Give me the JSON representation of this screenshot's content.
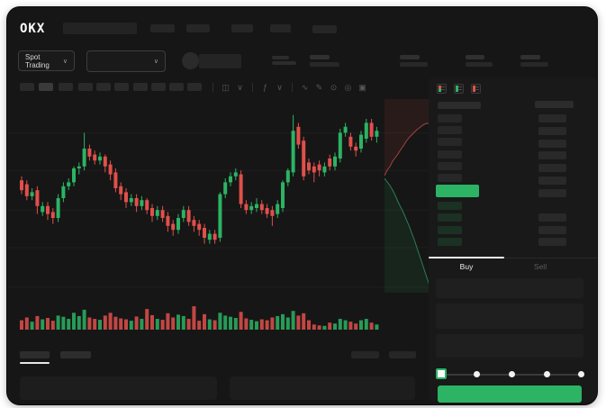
{
  "window_title": "OKX Spot Trading (redacted mock)",
  "colors": {
    "green": "#2cb364",
    "red": "#e0504b",
    "window_bg": "#161616",
    "panel_bg": "#191919",
    "bar_gray": "#272727",
    "bar_light": "#3a3a3a",
    "white": "#f2f2f2",
    "depth_ask_line": "#a1453f",
    "depth_bid_line": "#2f7d57",
    "depth_ask_fill": "rgba(224,80,75,0.10)",
    "depth_bid_fill": "rgba(44,179,100,0.10)"
  },
  "topbar": {
    "logo": "OKX"
  },
  "symbol_bar": {
    "market_label": "Spot Trading",
    "chevron": "∨"
  },
  "chart_toolbar": {
    "icons": [
      {
        "type": "divider"
      },
      {
        "type": "icon",
        "name": "chart-type-icon",
        "glyph": "◫"
      },
      {
        "type": "icon",
        "name": "chart-type-chevron-icon",
        "glyph": "∨"
      },
      {
        "type": "divider"
      },
      {
        "type": "icon",
        "name": "indicators-icon",
        "glyph": "ƒ"
      },
      {
        "type": "icon",
        "name": "indicators-chevron-icon",
        "glyph": "∨"
      },
      {
        "type": "divider"
      },
      {
        "type": "icon",
        "name": "line-tool-icon",
        "glyph": "∿"
      },
      {
        "type": "icon",
        "name": "draw-tool-icon",
        "glyph": "✎"
      },
      {
        "type": "icon",
        "name": "camera-icon",
        "glyph": "⊙"
      },
      {
        "type": "icon",
        "name": "settings-icon",
        "glyph": "◎"
      },
      {
        "type": "icon",
        "name": "fullscreen-icon",
        "glyph": "▣"
      }
    ]
  },
  "chart_data": {
    "type": "candlestick",
    "note": "No numeric axis labels are visible in the screenshot (redacted UI); values are normalized 0-100.",
    "ylim": [
      0,
      100
    ],
    "gridlines_y": [
      83,
      64,
      44,
      25,
      5
    ],
    "ohlc": [
      [
        59,
        61,
        52,
        54
      ],
      [
        57,
        59,
        49,
        51
      ],
      [
        51,
        55,
        49,
        53
      ],
      [
        54,
        56,
        42,
        46
      ],
      [
        43,
        48,
        41,
        46
      ],
      [
        46,
        48,
        39,
        42
      ],
      [
        43,
        45,
        37,
        40
      ],
      [
        40,
        52,
        38,
        50
      ],
      [
        50,
        58,
        48,
        56
      ],
      [
        56,
        60,
        54,
        58
      ],
      [
        58,
        66,
        56,
        65
      ],
      [
        65,
        68,
        62,
        66
      ],
      [
        66,
        83,
        64,
        75
      ],
      [
        75,
        77,
        69,
        71
      ],
      [
        72,
        74,
        67,
        69
      ],
      [
        69,
        73,
        67,
        71
      ],
      [
        71,
        72,
        63,
        66
      ],
      [
        67,
        69,
        59,
        62
      ],
      [
        63,
        65,
        53,
        55
      ],
      [
        56,
        58,
        49,
        52
      ],
      [
        53,
        55,
        45,
        48
      ],
      [
        48,
        52,
        46,
        50
      ],
      [
        50,
        52,
        43,
        46
      ],
      [
        46,
        51,
        44,
        49
      ],
      [
        49,
        50,
        42,
        44
      ],
      [
        45,
        47,
        38,
        41
      ],
      [
        41,
        46,
        39,
        44
      ],
      [
        44,
        46,
        38,
        40
      ],
      [
        41,
        43,
        33,
        36
      ],
      [
        37,
        39,
        31,
        34
      ],
      [
        34,
        42,
        32,
        40
      ],
      [
        40,
        46,
        38,
        44
      ],
      [
        44,
        46,
        36,
        38
      ],
      [
        39,
        41,
        33,
        36
      ],
      [
        37,
        39,
        31,
        34
      ],
      [
        35,
        37,
        27,
        30
      ],
      [
        29,
        34,
        27,
        32
      ],
      [
        32,
        34,
        27,
        29
      ],
      [
        30,
        53,
        28,
        52
      ],
      [
        52,
        60,
        50,
        58
      ],
      [
        58,
        63,
        56,
        61
      ],
      [
        61,
        65,
        59,
        63
      ],
      [
        62,
        64,
        45,
        47
      ],
      [
        47,
        49,
        42,
        44
      ],
      [
        44,
        48,
        42,
        46
      ],
      [
        45,
        50,
        43,
        47
      ],
      [
        47,
        49,
        42,
        44
      ],
      [
        45,
        47,
        40,
        42
      ],
      [
        44,
        46,
        36,
        41
      ],
      [
        42,
        49,
        40,
        47
      ],
      [
        45,
        59,
        43,
        58
      ],
      [
        58,
        65,
        56,
        64
      ],
      [
        63,
        92,
        61,
        84
      ],
      [
        86,
        88,
        75,
        77
      ],
      [
        79,
        81,
        59,
        61
      ],
      [
        68,
        70,
        62,
        64
      ],
      [
        66,
        68,
        58,
        63
      ],
      [
        67,
        69,
        61,
        64
      ],
      [
        63,
        68,
        61,
        66
      ],
      [
        70,
        72,
        64,
        66
      ],
      [
        66,
        73,
        64,
        71
      ],
      [
        70,
        85,
        68,
        83
      ],
      [
        83,
        88,
        81,
        86
      ],
      [
        81,
        83,
        74,
        76
      ],
      [
        76,
        78,
        71,
        74
      ],
      [
        75,
        84,
        73,
        82
      ],
      [
        80,
        90,
        78,
        88
      ],
      [
        88,
        90,
        79,
        81
      ],
      [
        81,
        86,
        78,
        84
      ]
    ],
    "volumes": [
      40,
      52,
      34,
      58,
      44,
      50,
      38,
      60,
      55,
      46,
      72,
      58,
      85,
      52,
      46,
      42,
      60,
      72,
      55,
      48,
      44,
      38,
      56,
      46,
      88,
      62,
      46,
      42,
      70,
      52,
      64,
      58,
      46,
      100,
      38,
      66,
      44,
      40,
      72,
      60,
      55,
      50,
      76,
      48,
      42,
      36,
      44,
      40,
      52,
      58,
      66,
      52,
      80,
      60,
      70,
      40,
      22,
      18,
      16,
      30,
      26,
      46,
      40,
      34,
      26,
      40,
      46,
      30,
      22
    ],
    "depth": {
      "asks_line": [
        [
          0,
          90
        ],
        [
          3,
          84
        ],
        [
          6,
          80
        ],
        [
          9,
          74
        ],
        [
          12,
          70
        ],
        [
          15,
          66
        ],
        [
          18,
          61
        ],
        [
          21,
          57
        ],
        [
          24,
          52
        ],
        [
          28,
          47
        ],
        [
          32,
          43
        ],
        [
          36,
          39
        ],
        [
          40,
          36
        ],
        [
          44,
          33
        ],
        [
          47,
          32
        ],
        [
          50,
          32
        ]
      ],
      "bids_line": [
        [
          0,
          93
        ],
        [
          3,
          97
        ],
        [
          6,
          101
        ],
        [
          9,
          106
        ],
        [
          12,
          112
        ],
        [
          15,
          119
        ],
        [
          18,
          125
        ],
        [
          21,
          131
        ],
        [
          24,
          138
        ],
        [
          27,
          145
        ],
        [
          30,
          153
        ],
        [
          33,
          161
        ],
        [
          36,
          170
        ],
        [
          39,
          179
        ],
        [
          42,
          188
        ],
        [
          45,
          197
        ],
        [
          48,
          206
        ],
        [
          50,
          212
        ]
      ]
    }
  },
  "orderbook": {
    "view_icons": [
      "book-combined-view-icon",
      "book-bids-view-icon",
      "book-asks-view-icon"
    ],
    "tabs": [
      {
        "label": "Buy",
        "active": true
      },
      {
        "label": "Sell",
        "active": false
      }
    ]
  },
  "trade_form": {
    "slider_stops": [
      "0%",
      "25%",
      "50%",
      "75%",
      "100%"
    ],
    "slider_value": "0%"
  },
  "redacted_bars": [
    {
      "name": "logo-wordmark-block",
      "interactable": false,
      "color": "#232323",
      "radius": 2,
      "rects": [
        [
          62,
          17,
          82,
          13
        ]
      ]
    },
    {
      "name": "topnav-item",
      "interactable": true,
      "color": "#262626",
      "radius": 2,
      "rects": [
        [
          159,
          19,
          27,
          9
        ],
        [
          199,
          19,
          26,
          9
        ],
        [
          249,
          19,
          24,
          9
        ],
        [
          292,
          19,
          23,
          9
        ],
        [
          339,
          20,
          27,
          9
        ]
      ]
    },
    {
      "name": "pair-name-block",
      "interactable": false,
      "color": "#242424",
      "radius": 2,
      "rects": [
        [
          213,
          52,
          47,
          16
        ]
      ]
    },
    {
      "name": "pair-subtext-line",
      "interactable": false,
      "color": "#2c2c2c",
      "radius": 2,
      "rects": [
        [
          294,
          54,
          19,
          4
        ],
        [
          294,
          60,
          27,
          4
        ]
      ]
    },
    {
      "name": "ticker-stat-label",
      "interactable": false,
      "color": "#303030",
      "radius": 2,
      "rects": [
        [
          336,
          53,
          22,
          5
        ],
        [
          436,
          53,
          22,
          5
        ],
        [
          509,
          53,
          21,
          5
        ],
        [
          570,
          53,
          22,
          5
        ]
      ]
    },
    {
      "name": "ticker-stat-value",
      "interactable": false,
      "color": "#282828",
      "radius": 2,
      "rects": [
        [
          336,
          61,
          33,
          5
        ],
        [
          436,
          61,
          31,
          5
        ],
        [
          509,
          61,
          30,
          5
        ],
        [
          570,
          61,
          31,
          5
        ]
      ]
    },
    {
      "name": "timeframe-button",
      "interactable": true,
      "color": "#2a2a2a",
      "radius": 2,
      "rects": [
        [
          14,
          84,
          16,
          9
        ],
        [
          57,
          84,
          16,
          9
        ],
        [
          79,
          84,
          16,
          9
        ],
        [
          99,
          84,
          16,
          9
        ],
        [
          119,
          84,
          16,
          9
        ],
        [
          140,
          84,
          16,
          9
        ],
        [
          160,
          84,
          16,
          9
        ],
        [
          180,
          84,
          16,
          9
        ],
        [
          200,
          84,
          16,
          9
        ]
      ]
    },
    {
      "name": "timeframe-button-selected",
      "interactable": true,
      "color": "#3a3a3a",
      "radius": 2,
      "rects": [
        [
          35,
          84,
          16,
          9
        ]
      ]
    },
    {
      "name": "book-column-header",
      "interactable": false,
      "color": "#2c2c2c",
      "radius": 2,
      "rects": [
        [
          478,
          105,
          48,
          8
        ],
        [
          586,
          104,
          43,
          8
        ]
      ]
    },
    {
      "name": "book-ask-price",
      "interactable": true,
      "color": "#272727",
      "radius": 2,
      "rects": [
        [
          478,
          119,
          27,
          9
        ],
        [
          478,
          132,
          27,
          9
        ],
        [
          478,
          145,
          27,
          9
        ],
        [
          478,
          159,
          27,
          9
        ],
        [
          478,
          172,
          27,
          9
        ],
        [
          478,
          185,
          27,
          9
        ]
      ]
    },
    {
      "name": "book-ask-amount",
      "interactable": true,
      "color": "#292929",
      "radius": 2,
      "rects": [
        [
          590,
          119,
          31,
          9
        ],
        [
          590,
          133,
          31,
          9
        ],
        [
          590,
          147,
          31,
          9
        ],
        [
          590,
          160,
          31,
          9
        ],
        [
          590,
          174,
          31,
          9
        ],
        [
          590,
          188,
          31,
          9
        ],
        [
          590,
          202,
          31,
          9
        ]
      ]
    },
    {
      "name": "book-bid-price",
      "interactable": true,
      "color": "rgba(44,179,100,0.16)",
      "radius": 2,
      "rects": [
        [
          478,
          216,
          27,
          9
        ],
        [
          478,
          229,
          27,
          9
        ],
        [
          478,
          243,
          27,
          9
        ],
        [
          478,
          256,
          27,
          9
        ]
      ]
    },
    {
      "name": "book-bid-amount",
      "interactable": true,
      "color": "#292929",
      "radius": 2,
      "rects": [
        [
          590,
          229,
          31,
          9
        ],
        [
          590,
          243,
          31,
          9
        ],
        [
          590,
          256,
          31,
          9
        ]
      ]
    },
    {
      "name": "orders-tab",
      "interactable": true,
      "color": "#2d2d2d",
      "radius": 2,
      "rects": [
        [
          14,
          382,
          33,
          8
        ],
        [
          59,
          382,
          34,
          8
        ]
      ]
    },
    {
      "name": "orders-tab-underline",
      "interactable": false,
      "color": "#e8e8e8",
      "radius": 1,
      "rects": [
        [
          14,
          394,
          33,
          2
        ]
      ]
    },
    {
      "name": "orders-filter-block",
      "interactable": true,
      "color": "#262626",
      "radius": 2,
      "rects": [
        [
          382,
          382,
          31,
          8
        ],
        [
          424,
          382,
          30,
          8
        ]
      ]
    },
    {
      "name": "orders-table-panel",
      "interactable": false,
      "color": "#1d1d1d",
      "radius": 4,
      "rects": [
        [
          14,
          410,
          219,
          26
        ],
        [
          247,
          410,
          206,
          26
        ]
      ]
    },
    {
      "name": "form-input-field",
      "interactable": true,
      "color": "#1f1f1f",
      "radius": 3,
      "rects": [
        [
          476,
          301,
          164,
          22
        ],
        [
          476,
          329,
          164,
          28
        ],
        [
          476,
          363,
          164,
          26
        ]
      ]
    },
    {
      "name": "book-tabbar-divider",
      "interactable": false,
      "color": "#2a2a2a",
      "radius": 0,
      "rects": [
        [
          468,
          278,
          187,
          1
        ]
      ]
    },
    {
      "name": "buy-tab-indicator",
      "interactable": false,
      "color": "#f5f5f5",
      "radius": 1,
      "rects": [
        [
          468,
          277,
          84,
          2
        ]
      ]
    }
  ]
}
